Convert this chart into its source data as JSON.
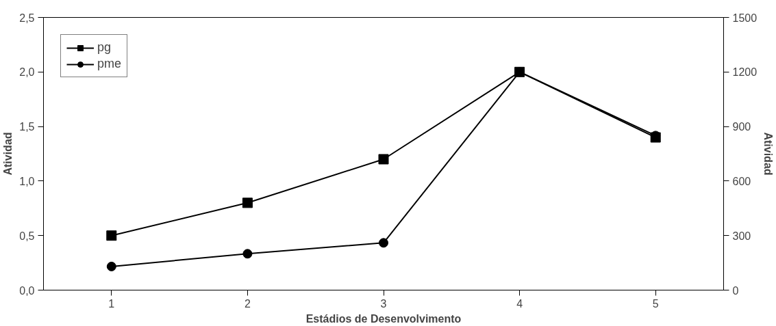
{
  "chart_data": {
    "type": "line",
    "xlabel": "Estádios de Desenvolvimento",
    "ylabel": "Atividad",
    "y2label": "Atividad",
    "categories": [
      "1",
      "2",
      "3",
      "4",
      "5"
    ],
    "series": [
      {
        "name": "pg",
        "color": "#000000",
        "marker": "square",
        "values": [
          0.5,
          0.8,
          1.2,
          2.0,
          1.4
        ]
      },
      {
        "name": "pme",
        "color": "#000000",
        "marker": "circle",
        "axis": "y2",
        "values": [
          130,
          200,
          260,
          1200,
          850
        ]
      }
    ],
    "ylim": [
      0,
      2.5
    ],
    "yticks": [
      {
        "value": 0,
        "label": "0,0"
      },
      {
        "value": 0.5,
        "label": "0,5"
      },
      {
        "value": 1,
        "label": "1,0"
      },
      {
        "value": 1.5,
        "label": "1,5"
      },
      {
        "value": 2,
        "label": "2,0"
      },
      {
        "value": 2.5,
        "label": "2,5"
      }
    ],
    "y2lim": [
      0,
      1500
    ],
    "y2ticks": [
      0,
      300,
      600,
      900,
      1200,
      1500
    ],
    "grid": false,
    "legend": "top left",
    "line_style": "solid"
  }
}
